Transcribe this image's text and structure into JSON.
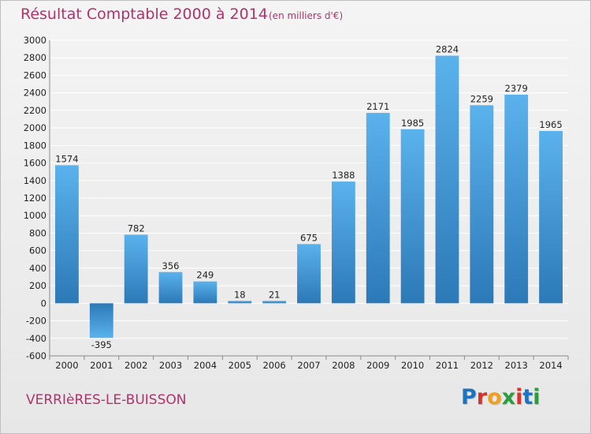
{
  "header": {
    "title": "Résultat Comptable 2000 à 2014",
    "subtitle": "(en milliers d'€)"
  },
  "footer": {
    "commune": "VERRIèRES-LE-BUISSON",
    "logo_letters": [
      "P",
      "r",
      "o",
      "x",
      "i",
      "t",
      "i"
    ]
  },
  "colors": {
    "title": "#b0336b",
    "bar_top": "#5ab2ec",
    "bar_bottom": "#2c79b7",
    "grid": "#ffffff",
    "axis_text": "#222222",
    "logo": [
      "#1e73be",
      "#d9322b",
      "#f0a020",
      "#2a9d3f",
      "#d9322b",
      "#1e73be",
      "#2a9d3f"
    ]
  },
  "chart_data": {
    "type": "bar",
    "title": "Résultat Comptable 2000 à 2014",
    "subtitle": "(en milliers d'€)",
    "categories": [
      "2000",
      "2001",
      "2002",
      "2003",
      "2004",
      "2005",
      "2006",
      "2007",
      "2008",
      "2009",
      "2010",
      "2011",
      "2012",
      "2013",
      "2014"
    ],
    "values": [
      1574,
      -395,
      782,
      356,
      249,
      18,
      21,
      675,
      1388,
      2171,
      1985,
      2824,
      2259,
      2379,
      1965
    ],
    "ylim": [
      -600,
      3000
    ],
    "yticks": [
      -600,
      -400,
      -200,
      0,
      200,
      400,
      600,
      800,
      1000,
      1200,
      1400,
      1600,
      1800,
      2000,
      2200,
      2400,
      2600,
      2800,
      3000
    ],
    "xlabel": "",
    "ylabel": "",
    "grid": true
  }
}
